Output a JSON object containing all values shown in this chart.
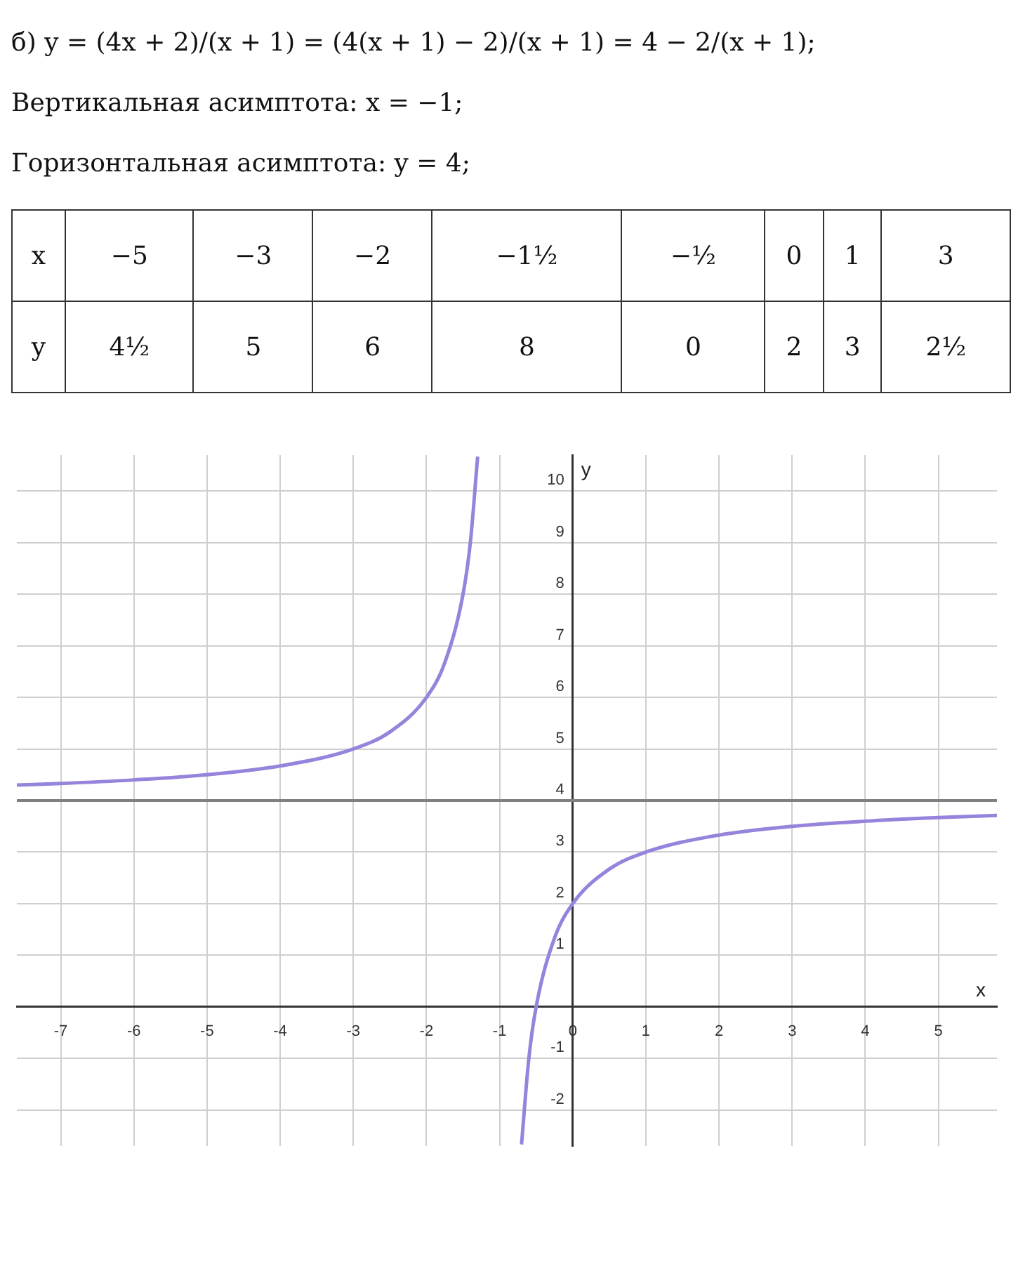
{
  "chart_data": {
    "type": "line",
    "title": "б) y = (4x + 2)/(x + 1) = (4(x + 1) − 2)/(x + 1) = 4 − 2/(x + 1);",
    "annotations": [
      "Вертикальная асимптота: x = −1;",
      "Горизонтальная асимптота: y = 4;",
      "x",
      "−5",
      "−3",
      "−2",
      "−1½",
      "−½",
      "0",
      "1",
      "3",
      "y",
      "4½",
      "5",
      "6",
      "8",
      "0",
      "2",
      "3",
      "2½"
    ],
    "xlabel": "x",
    "ylabel": "y",
    "series": [
      {
        "color": "#9683dc",
        "x": [
          -7.6,
          -7,
          -6,
          -5,
          -4,
          -3,
          -2.5,
          -2,
          -1.75,
          -1.5,
          -1.4,
          -1.3
        ],
        "values": [
          4.3,
          4.33,
          4.4,
          4.5,
          4.67,
          5,
          5.33,
          6,
          6.67,
          8,
          9,
          10.67
        ]
      },
      {
        "color": "#9683dc",
        "x": [
          -0.7,
          -0.6,
          -0.5,
          -0.25,
          0,
          0.5,
          1,
          2,
          3,
          4,
          5,
          5.8
        ],
        "values": [
          -2.67,
          -1,
          0,
          1.33,
          2,
          2.67,
          3,
          3.33,
          3.5,
          3.6,
          3.67,
          3.71
        ]
      }
    ],
    "xlim": [
      -7.6,
      5.8
    ],
    "ylim": [
      -2.7,
      10.7
    ],
    "xticks": [
      -7,
      -6,
      -5,
      -4,
      -3,
      -2,
      -1,
      0,
      1,
      2,
      3,
      4,
      5
    ],
    "yticks": [
      -2,
      -1,
      {
        "value": 0,
        "label": null
      },
      1,
      2,
      3,
      4,
      5,
      6,
      7,
      8,
      9,
      10
    ],
    "ref_lines": [
      {
        "axis": "y",
        "value": 4,
        "color": "#808080"
      }
    ],
    "grid": true,
    "marker": "none",
    "line_style": "solid"
  }
}
